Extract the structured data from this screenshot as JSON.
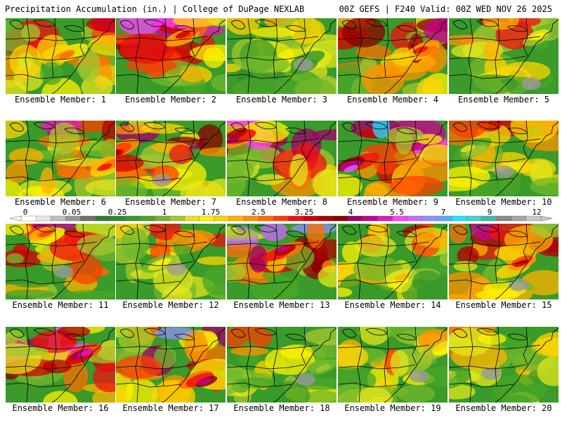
{
  "header": {
    "left": "Precipitation Accumulation (in.) | College of DuPage NEXLAB",
    "right": "00Z GEFS | F240 Valid: 00Z WED NOV 26 2025"
  },
  "colors": {
    "background": "#ffffff",
    "map_line": "#000000"
  },
  "legend": {
    "tick_labels": [
      "0",
      "0.05",
      "0.25",
      "1",
      "1.75",
      "2.5",
      "3.25",
      "4",
      "5.5",
      "7",
      "9",
      "12"
    ],
    "color_steps": [
      "#ffffff",
      "#e6e6e6",
      "#bfbfbf",
      "#989898",
      "#707070",
      "#2e7d32",
      "#338a2e",
      "#3a9a2a",
      "#49a628",
      "#72b82c",
      "#a6c72e",
      "#e3e51d",
      "#fff200",
      "#ffd400",
      "#ffb300",
      "#ff9100",
      "#ff6d00",
      "#ff3d00",
      "#f01010",
      "#d40000",
      "#b00000",
      "#8b0000",
      "#a0006a",
      "#c8008f",
      "#e41ab7",
      "#ff40ff",
      "#c86bff",
      "#8f8fff",
      "#5aa9ff",
      "#1ee5ff",
      "#40d6c8",
      "#40b8b0",
      "#8a8a8a",
      "#a6a6a6",
      "#c8c8c8"
    ]
  },
  "members": [
    {
      "label": "Ensemble Member: 1",
      "intensity": 2.2
    },
    {
      "label": "Ensemble Member: 2",
      "intensity": 2.8
    },
    {
      "label": "Ensemble Member: 3",
      "intensity": 0.6
    },
    {
      "label": "Ensemble Member: 4",
      "intensity": 2.6
    },
    {
      "label": "Ensemble Member: 5",
      "intensity": 1.3
    },
    {
      "label": "Ensemble Member: 6",
      "intensity": 2.5
    },
    {
      "label": "Ensemble Member: 7",
      "intensity": 3.2
    },
    {
      "label": "Ensemble Member: 8",
      "intensity": 3.4
    },
    {
      "label": "Ensemble Member: 9",
      "intensity": 4.2
    },
    {
      "label": "Ensemble Member: 10",
      "intensity": 1.1
    },
    {
      "label": "Ensemble Member: 11",
      "intensity": 2.3
    },
    {
      "label": "Ensemble Member: 12",
      "intensity": 1.4
    },
    {
      "label": "Ensemble Member: 13",
      "intensity": 3.5
    },
    {
      "label": "Ensemble Member: 14",
      "intensity": 1.7
    },
    {
      "label": "Ensemble Member: 15",
      "intensity": 2.7
    },
    {
      "label": "Ensemble Member: 16",
      "intensity": 3.8
    },
    {
      "label": "Ensemble Member: 17",
      "intensity": 3.6
    },
    {
      "label": "Ensemble Member: 18",
      "intensity": 1.0
    },
    {
      "label": "Ensemble Member: 19",
      "intensity": 1.5
    },
    {
      "label": "Ensemble Member: 20",
      "intensity": 0.9
    }
  ]
}
